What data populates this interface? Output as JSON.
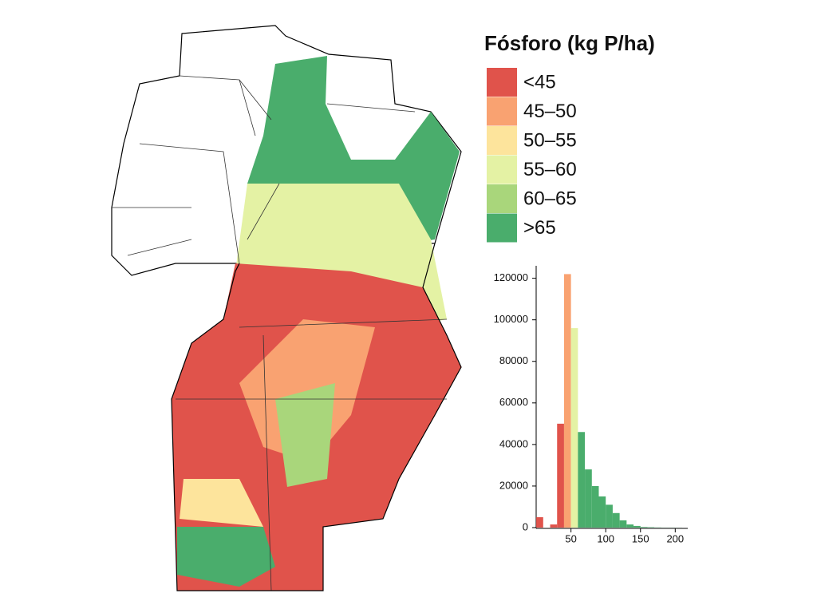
{
  "legend": {
    "title": "Fósforo (kg P/ha)",
    "items": [
      {
        "label": "<45",
        "color": "#e0534b"
      },
      {
        "label": "45–50",
        "color": "#f9a271"
      },
      {
        "label": "50–55",
        "color": "#fde49c"
      },
      {
        "label": "55–60",
        "color": "#e4f2a4"
      },
      {
        "label": "60–65",
        "color": "#a9d67b"
      },
      {
        "label": ">65",
        "color": "#4aad6c"
      }
    ]
  },
  "chart_data": {
    "type": "histogram",
    "bins": [
      0,
      10,
      20,
      30,
      40,
      50,
      60,
      70,
      80,
      90,
      100,
      110,
      120,
      130,
      140,
      150,
      160,
      170,
      180,
      190,
      200,
      210
    ],
    "values": [
      5000,
      0,
      1500,
      50000,
      122000,
      96000,
      46000,
      28000,
      20000,
      15000,
      11000,
      7000,
      3500,
      1500,
      800,
      300,
      200,
      100,
      50,
      50,
      30
    ],
    "colors": [
      "#e0534b",
      "#e0534b",
      "#e0534b",
      "#e0534b",
      "#f9a271",
      "#e4f2a4",
      "#4aad6c",
      "#4aad6c",
      "#4aad6c",
      "#4aad6c",
      "#4aad6c",
      "#4aad6c",
      "#4aad6c",
      "#4aad6c",
      "#4aad6c",
      "#4aad6c",
      "#4aad6c",
      "#4aad6c",
      "#4aad6c",
      "#4aad6c",
      "#4aad6c"
    ],
    "xlim": [
      -7,
      218
    ],
    "xticks": [
      50,
      100,
      150,
      200
    ],
    "ylim": [
      0,
      126000
    ],
    "yticks": [
      0,
      20000,
      40000,
      60000,
      80000,
      100000,
      120000
    ]
  }
}
